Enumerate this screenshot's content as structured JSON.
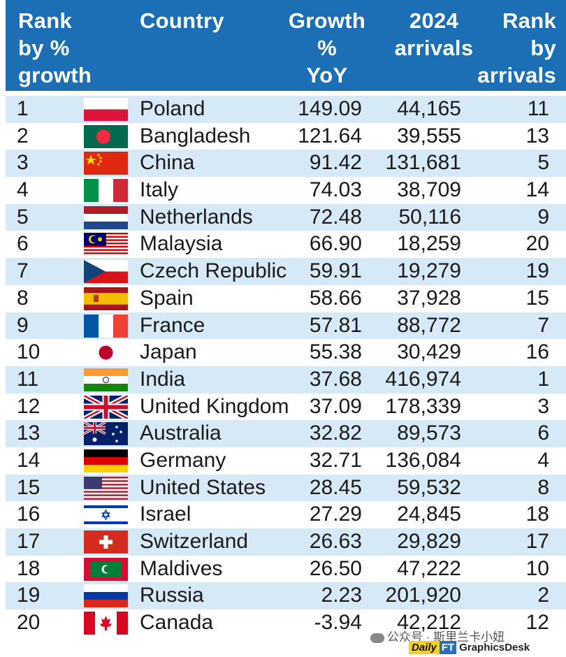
{
  "headers": {
    "rank_growth": [
      "Rank",
      "by %",
      "growth"
    ],
    "country": "Country",
    "growth": [
      "Growth",
      "%",
      "YoY"
    ],
    "arrivals": [
      "2024",
      "arrivals"
    ],
    "rank_arrivals": [
      "Rank",
      "by",
      "arrivals"
    ]
  },
  "rows": [
    {
      "rank": "1",
      "flag": "poland-flag-icon",
      "country": "Poland",
      "growth": "149.09",
      "arrivals": "44,165",
      "rank_arrivals": "11"
    },
    {
      "rank": "2",
      "flag": "bangladesh-flag-icon",
      "country": "Bangladesh",
      "growth": "121.64",
      "arrivals": "39,555",
      "rank_arrivals": "13"
    },
    {
      "rank": "3",
      "flag": "china-flag-icon",
      "country": "China",
      "growth": "91.42",
      "arrivals": "131,681",
      "rank_arrivals": "5"
    },
    {
      "rank": "4",
      "flag": "italy-flag-icon",
      "country": "Italy",
      "growth": "74.03",
      "arrivals": "38,709",
      "rank_arrivals": "14"
    },
    {
      "rank": "5",
      "flag": "netherlands-flag-icon",
      "country": "Netherlands",
      "growth": "72.48",
      "arrivals": "50,116",
      "rank_arrivals": "9"
    },
    {
      "rank": "6",
      "flag": "malaysia-flag-icon",
      "country": "Malaysia",
      "growth": "66.90",
      "arrivals": "18,259",
      "rank_arrivals": "20"
    },
    {
      "rank": "7",
      "flag": "czech-flag-icon",
      "country": "Czech Republic",
      "growth": "59.91",
      "arrivals": "19,279",
      "rank_arrivals": "19"
    },
    {
      "rank": "8",
      "flag": "spain-flag-icon",
      "country": "Spain",
      "growth": "58.66",
      "arrivals": "37,928",
      "rank_arrivals": "15"
    },
    {
      "rank": "9",
      "flag": "france-flag-icon",
      "country": "France",
      "growth": "57.81",
      "arrivals": "88,772",
      "rank_arrivals": "7"
    },
    {
      "rank": "10",
      "flag": "japan-flag-icon",
      "country": "Japan",
      "growth": "55.38",
      "arrivals": "30,429",
      "rank_arrivals": "16"
    },
    {
      "rank": "11",
      "flag": "india-flag-icon",
      "country": "India",
      "growth": "37.68",
      "arrivals": "416,974",
      "rank_arrivals": "1"
    },
    {
      "rank": "12",
      "flag": "uk-flag-icon",
      "country": "United Kingdom",
      "growth": "37.09",
      "arrivals": "178,339",
      "rank_arrivals": "3"
    },
    {
      "rank": "13",
      "flag": "australia-flag-icon",
      "country": "Australia",
      "growth": "32.82",
      "arrivals": "89,573",
      "rank_arrivals": "6"
    },
    {
      "rank": "14",
      "flag": "germany-flag-icon",
      "country": "Germany",
      "growth": "32.71",
      "arrivals": "136,084",
      "rank_arrivals": "4"
    },
    {
      "rank": "15",
      "flag": "usa-flag-icon",
      "country": "United States",
      "growth": "28.45",
      "arrivals": "59,532",
      "rank_arrivals": "8"
    },
    {
      "rank": "16",
      "flag": "israel-flag-icon",
      "country": "Israel",
      "growth": "27.29",
      "arrivals": "24,845",
      "rank_arrivals": "18"
    },
    {
      "rank": "17",
      "flag": "switzerland-flag-icon",
      "country": "Switzerland",
      "growth": "26.63",
      "arrivals": "29,829",
      "rank_arrivals": "17"
    },
    {
      "rank": "18",
      "flag": "maldives-flag-icon",
      "country": "Maldives",
      "growth": "26.50",
      "arrivals": "47,222",
      "rank_arrivals": "10"
    },
    {
      "rank": "19",
      "flag": "russia-flag-icon",
      "country": "Russia",
      "growth": "2.23",
      "arrivals": "201,920",
      "rank_arrivals": "2"
    },
    {
      "rank": "20",
      "flag": "canada-flag-icon",
      "country": "Canada",
      "growth": "-3.94",
      "arrivals": "42,212",
      "rank_arrivals": "12"
    }
  ],
  "watermark": "公众号 · 斯里兰卡小妞",
  "logo": {
    "daily": "Daily",
    "ft": "FT",
    "desk": "GraphicsDesk"
  },
  "colors": {
    "header": "#1c6fb5",
    "alt_row": "#d6e9f7"
  }
}
